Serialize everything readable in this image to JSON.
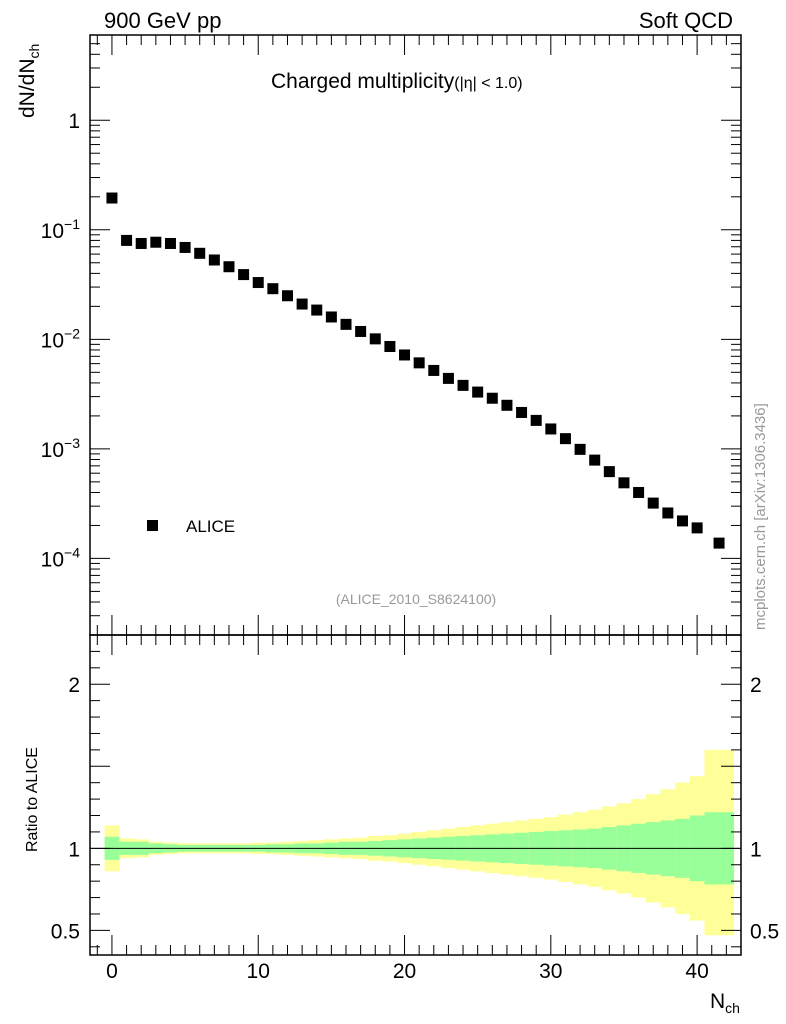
{
  "header": {
    "left": "900 GeV pp",
    "right": "Soft QCD"
  },
  "side_note": "mcplots.cern.ch [arXiv:1306.3436]",
  "analysis_tag": "(ALICE_2010_S8624100)",
  "colors": {
    "marker": "#000000",
    "band_inner": "#99ff99",
    "band_outer": "#ffff99",
    "unity_line": "#000000"
  },
  "chart_data": [
    {
      "type": "scatter",
      "panel": "main",
      "title": "Charged multiplicity",
      "title_suffix": "(|η| < 1.0)",
      "ylabel": "dN/dN",
      "ylabel_sub": "ch",
      "yscale": "log",
      "xlim": [
        -1.5,
        43
      ],
      "ylim": [
        2e-05,
        6
      ],
      "y_ticks": [
        {
          "value": 1,
          "label": "1",
          "exp": ""
        },
        {
          "value": 0.1,
          "label": "10",
          "exp": "−1"
        },
        {
          "value": 0.01,
          "label": "10",
          "exp": "−2"
        },
        {
          "value": 0.001,
          "label": "10",
          "exp": "−3"
        },
        {
          "value": 0.0001,
          "label": "10",
          "exp": "−4"
        }
      ],
      "legend": {
        "position": "bottom-left",
        "entries": [
          "ALICE"
        ]
      },
      "series": [
        {
          "name": "ALICE",
          "x": [
            0,
            1,
            2,
            3,
            4,
            5,
            6,
            7,
            8,
            9,
            10,
            11,
            12,
            13,
            14,
            15,
            16,
            17,
            18,
            19,
            20,
            21,
            22,
            23,
            24,
            25,
            26,
            27,
            28,
            29,
            30,
            31,
            32,
            33,
            34,
            35,
            36,
            37,
            38,
            39,
            40,
            41.5
          ],
          "y": [
            0.195,
            0.08,
            0.075,
            0.077,
            0.075,
            0.069,
            0.061,
            0.053,
            0.046,
            0.039,
            0.033,
            0.029,
            0.025,
            0.021,
            0.0185,
            0.016,
            0.0137,
            0.0118,
            0.0101,
            0.0086,
            0.0072,
            0.0061,
            0.0052,
            0.0044,
            0.0038,
            0.0033,
            0.0029,
            0.0025,
            0.00215,
            0.00182,
            0.00152,
            0.00124,
            0.00099,
            0.00079,
            0.00062,
            0.00049,
            0.0004,
            0.00032,
            0.00026,
            0.00022,
            0.00019,
            0.000138
          ]
        }
      ]
    },
    {
      "type": "area",
      "panel": "ratio",
      "ylabel": "Ratio to ALICE",
      "xlabel": "N",
      "xlabel_sub": "ch",
      "xlim": [
        -1.5,
        43
      ],
      "ylim": [
        0.35,
        2.3
      ],
      "x_ticks": [
        0,
        10,
        20,
        30,
        40
      ],
      "y_ticks": [
        0.5,
        1,
        2
      ],
      "reference_line": 1,
      "bin_edges": [
        -0.5,
        0.5,
        1.5,
        2.5,
        3.5,
        4.5,
        5.5,
        6.5,
        7.5,
        8.5,
        9.5,
        10.5,
        11.5,
        12.5,
        13.5,
        14.5,
        15.5,
        16.5,
        17.5,
        18.5,
        19.5,
        20.5,
        21.5,
        22.5,
        23.5,
        24.5,
        25.5,
        26.5,
        27.5,
        28.5,
        29.5,
        30.5,
        31.5,
        32.5,
        33.5,
        34.5,
        35.5,
        36.5,
        37.5,
        38.5,
        39.5,
        40.5,
        42.5
      ],
      "inner_lo": [
        0.93,
        0.96,
        0.96,
        0.97,
        0.975,
        0.98,
        0.98,
        0.98,
        0.98,
        0.98,
        0.98,
        0.975,
        0.975,
        0.97,
        0.97,
        0.965,
        0.96,
        0.96,
        0.955,
        0.95,
        0.945,
        0.94,
        0.935,
        0.93,
        0.925,
        0.92,
        0.915,
        0.91,
        0.905,
        0.9,
        0.895,
        0.89,
        0.885,
        0.88,
        0.87,
        0.86,
        0.85,
        0.84,
        0.83,
        0.82,
        0.8,
        0.78
      ],
      "inner_hi": [
        1.07,
        1.04,
        1.04,
        1.03,
        1.025,
        1.02,
        1.02,
        1.02,
        1.02,
        1.02,
        1.02,
        1.025,
        1.025,
        1.03,
        1.03,
        1.035,
        1.04,
        1.04,
        1.045,
        1.05,
        1.055,
        1.06,
        1.065,
        1.07,
        1.075,
        1.08,
        1.085,
        1.09,
        1.095,
        1.1,
        1.105,
        1.11,
        1.115,
        1.12,
        1.13,
        1.14,
        1.15,
        1.16,
        1.17,
        1.18,
        1.2,
        1.22
      ],
      "outer_lo": [
        0.86,
        0.94,
        0.945,
        0.96,
        0.965,
        0.97,
        0.97,
        0.97,
        0.97,
        0.97,
        0.965,
        0.965,
        0.96,
        0.955,
        0.95,
        0.945,
        0.94,
        0.935,
        0.925,
        0.92,
        0.91,
        0.9,
        0.89,
        0.88,
        0.87,
        0.86,
        0.85,
        0.84,
        0.83,
        0.82,
        0.81,
        0.795,
        0.78,
        0.765,
        0.745,
        0.725,
        0.7,
        0.67,
        0.64,
        0.6,
        0.56,
        0.47
      ],
      "outer_hi": [
        1.14,
        1.06,
        1.055,
        1.04,
        1.035,
        1.03,
        1.03,
        1.03,
        1.03,
        1.03,
        1.035,
        1.035,
        1.04,
        1.045,
        1.05,
        1.055,
        1.06,
        1.065,
        1.075,
        1.08,
        1.09,
        1.1,
        1.11,
        1.12,
        1.13,
        1.14,
        1.15,
        1.16,
        1.17,
        1.18,
        1.19,
        1.205,
        1.22,
        1.235,
        1.255,
        1.275,
        1.3,
        1.33,
        1.36,
        1.4,
        1.44,
        1.6
      ]
    }
  ]
}
